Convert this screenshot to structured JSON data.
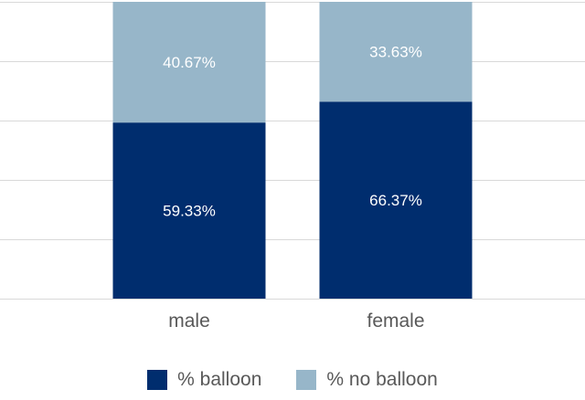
{
  "chart_data": {
    "type": "bar",
    "stacked": true,
    "percent_stacked": true,
    "categories": [
      "male",
      "female"
    ],
    "series": [
      {
        "name": "% balloon",
        "values": [
          59.33,
          66.37
        ],
        "labels": [
          "59.33%",
          "66.37%"
        ],
        "color": "#002D6E"
      },
      {
        "name": "% no balloon",
        "values": [
          40.67,
          33.63
        ],
        "labels": [
          "40.67%",
          "33.63%"
        ],
        "color": "#97B6C9"
      }
    ],
    "ylim": [
      0,
      100
    ],
    "grid": true,
    "legend": "bottom"
  }
}
